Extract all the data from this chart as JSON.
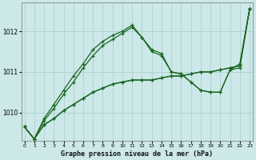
{
  "title": "Graphe pression niveau de la mer (hPa)",
  "bg_color": "#cce8e8",
  "grid_color": "#b0d0d0",
  "line_color": "#1a6620",
  "x_ticks": [
    0,
    1,
    2,
    3,
    4,
    5,
    6,
    7,
    8,
    9,
    10,
    11,
    12,
    13,
    14,
    15,
    16,
    17,
    18,
    19,
    20,
    21,
    22,
    23
  ],
  "y_ticks": [
    1010,
    1011,
    1012
  ],
  "ylim": [
    1009.3,
    1012.7
  ],
  "xlim": [
    -0.3,
    23.3
  ],
  "series": [
    [
      1009.65,
      1009.35,
      1009.7,
      1009.85,
      1010.05,
      1010.2,
      1010.35,
      1010.5,
      1010.6,
      1010.7,
      1010.75,
      1010.8,
      1010.8,
      1010.8,
      1010.85,
      1010.9,
      1010.9,
      1010.95,
      1011.0,
      1011.0,
      1011.05,
      1011.1,
      1011.15,
      1012.55
    ],
    [
      1009.65,
      1009.35,
      1009.7,
      1009.85,
      1010.05,
      1010.2,
      1010.35,
      1010.5,
      1010.6,
      1010.7,
      1010.75,
      1010.8,
      1010.8,
      1010.8,
      1010.85,
      1010.9,
      1010.9,
      1010.95,
      1011.0,
      1011.0,
      1011.05,
      1011.1,
      1011.15,
      1012.55
    ],
    [
      1009.65,
      1009.35,
      1009.8,
      1010.1,
      1010.45,
      1010.75,
      1011.1,
      1011.4,
      1011.65,
      1011.8,
      1011.95,
      1012.1,
      1011.85,
      1011.55,
      1011.45,
      1011.0,
      1010.95,
      1010.75,
      1010.55,
      1010.5,
      1010.5,
      1011.05,
      1011.1,
      1012.55
    ],
    [
      1009.65,
      1009.35,
      1009.85,
      1010.2,
      1010.55,
      1010.9,
      1011.2,
      1011.55,
      1011.75,
      1011.9,
      1012.0,
      1012.15,
      1011.85,
      1011.5,
      1011.4,
      1011.0,
      1010.95,
      1010.75,
      1010.55,
      1010.5,
      1010.5,
      1011.05,
      1011.2,
      1012.55
    ]
  ],
  "figsize": [
    3.2,
    2.0
  ],
  "dpi": 100
}
